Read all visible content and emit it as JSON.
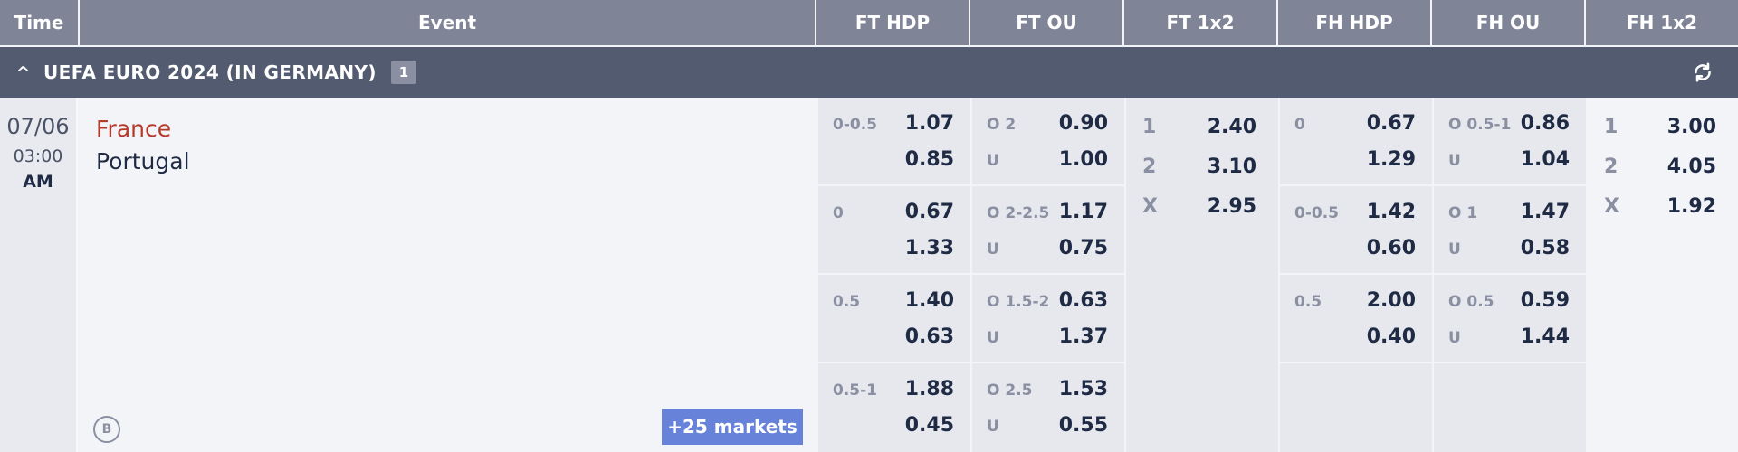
{
  "header": {
    "time": "Time",
    "event": "Event",
    "ft_hdp": "FT HDP",
    "ft_ou": "FT OU",
    "ft_1x2": "FT 1x2",
    "fh_hdp": "FH HDP",
    "fh_ou": "FH OU",
    "fh_1x2": "FH 1x2"
  },
  "league": {
    "chevron": "^",
    "name": "UEFA EURO 2024 (IN GERMANY)",
    "count": "1"
  },
  "match": {
    "date": "07/06",
    "time": "03:00",
    "ampm": "AM",
    "home": "France",
    "away": "Portugal",
    "b_badge": "B",
    "markets": "+25 markets"
  },
  "ft_hdp": [
    {
      "line": "0-0.5",
      "home": "1.07",
      "away": "0.85"
    },
    {
      "line": "0",
      "home": "0.67",
      "away": "1.33"
    },
    {
      "line": "0.5",
      "home": "1.40",
      "away": "0.63"
    },
    {
      "line": "0.5-1",
      "home": "1.88",
      "away": "0.45"
    }
  ],
  "ft_ou": [
    {
      "over": "O 2",
      "under": "U",
      "o": "0.90",
      "u": "1.00"
    },
    {
      "over": "O 2-2.5",
      "under": "U",
      "o": "1.17",
      "u": "0.75"
    },
    {
      "over": "O 1.5-2",
      "under": "U",
      "o": "0.63",
      "u": "1.37"
    },
    {
      "over": "O 2.5",
      "under": "U",
      "o": "1.53",
      "u": "0.55"
    }
  ],
  "ft_1x2": [
    {
      "k": "1",
      "v": "2.40"
    },
    {
      "k": "2",
      "v": "3.10"
    },
    {
      "k": "X",
      "v": "2.95"
    }
  ],
  "fh_hdp": [
    {
      "line": "0",
      "home": "0.67",
      "away": "1.29"
    },
    {
      "line": "0-0.5",
      "home": "1.42",
      "away": "0.60"
    },
    {
      "line": "0.5",
      "home": "2.00",
      "away": "0.40"
    }
  ],
  "fh_ou": [
    {
      "over": "O 0.5-1",
      "under": "U",
      "o": "0.86",
      "u": "1.04"
    },
    {
      "over": "O 1",
      "under": "U",
      "o": "1.47",
      "u": "0.58"
    },
    {
      "over": "O 0.5",
      "under": "U",
      "o": "0.59",
      "u": "1.44"
    }
  ],
  "fh_1x2": [
    {
      "k": "1",
      "v": "3.00"
    },
    {
      "k": "2",
      "v": "4.05"
    },
    {
      "k": "X",
      "v": "1.92"
    }
  ],
  "icons": {
    "refresh": "refresh-icon",
    "collapse": "chevron-up-icon"
  }
}
